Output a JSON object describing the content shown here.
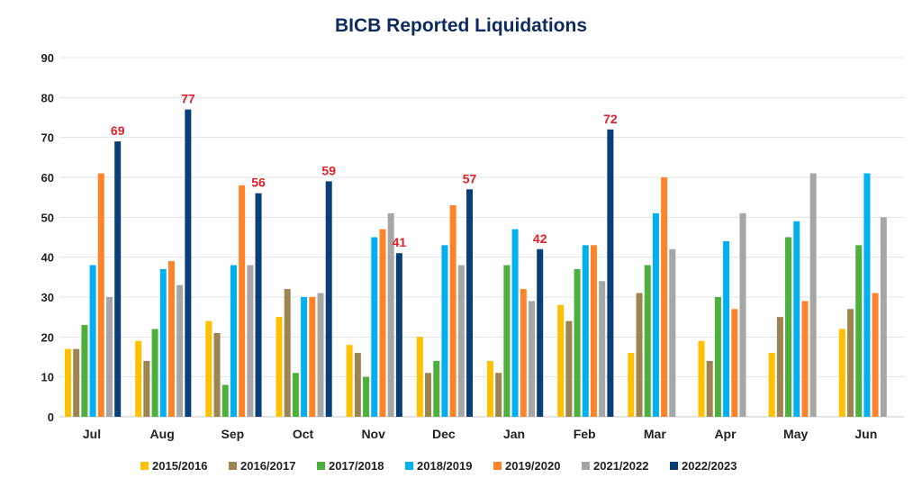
{
  "chart_data": {
    "type": "bar",
    "title": "BICB Reported Liquidations",
    "xlabel": "",
    "ylabel": "",
    "ylim": [
      0,
      90
    ],
    "yticks": [
      0,
      10,
      20,
      30,
      40,
      50,
      60,
      70,
      80,
      90
    ],
    "grid": true,
    "legend_position": "bottom",
    "categories": [
      "Jul",
      "Aug",
      "Sep",
      "Oct",
      "Nov",
      "Dec",
      "Jan",
      "Feb",
      "Mar",
      "Apr",
      "May",
      "Jun"
    ],
    "series": [
      {
        "name": "2015/2016",
        "color": "#FFC000",
        "values": [
          17,
          19,
          24,
          25,
          18,
          20,
          14,
          28,
          16,
          19,
          16,
          22
        ]
      },
      {
        "name": "2016/2017",
        "color": "#9C8550",
        "values": [
          17,
          14,
          21,
          32,
          16,
          11,
          11,
          24,
          31,
          14,
          25,
          27
        ]
      },
      {
        "name": "2017/2018",
        "color": "#4DAF3C",
        "values": [
          23,
          22,
          8,
          11,
          10,
          14,
          38,
          37,
          38,
          30,
          45,
          43
        ]
      },
      {
        "name": "2018/2019",
        "color": "#00B0F0",
        "values": [
          38,
          37,
          38,
          30,
          45,
          43,
          47,
          43,
          51,
          44,
          49,
          61
        ]
      },
      {
        "name": "2019/2020",
        "color": "#FF8429",
        "values": [
          61,
          39,
          58,
          30,
          47,
          53,
          32,
          43,
          60,
          27,
          29,
          31
        ]
      },
      {
        "name": "2021/2022",
        "color": "#A6A6A6",
        "values": [
          30,
          33,
          38,
          31,
          51,
          38,
          29,
          34,
          42,
          51,
          61,
          50
        ]
      },
      {
        "name": "2022/2023",
        "color": "#083F78",
        "values": [
          69,
          77,
          56,
          59,
          41,
          57,
          42,
          72,
          null,
          null,
          null,
          null
        ],
        "data_labels": true
      }
    ],
    "data_label_color": "#E0212B",
    "title_color": "#0E2A5E"
  }
}
